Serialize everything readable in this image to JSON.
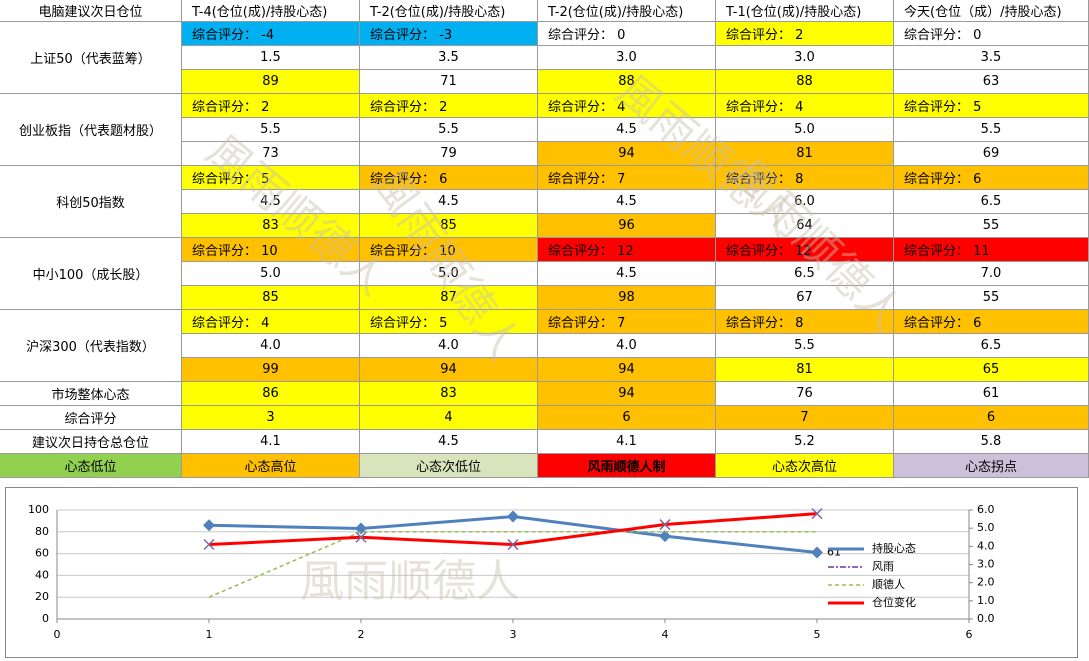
{
  "table": {
    "header": [
      "电脑建议次日仓位",
      "T-4(仓位(成)/持股心态)",
      "T-2(仓位(成)/持股心态)",
      "T-2(仓位(成)/持股心态)",
      "T-1(仓位(成)/持股心态)",
      "今天(仓位（成）/持股心态)"
    ],
    "groups": [
      {
        "label": "上证50（代表蓝筹）",
        "rows": [
          [
            {
              "text": "综合评分： -4",
              "fill": "#00b0f0"
            },
            {
              "text": "综合评分： -3",
              "fill": "#00b0f0"
            },
            {
              "text": "综合评分： 0",
              "fill": "#ffffff"
            },
            {
              "text": "综合评分： 2",
              "fill": "#ffff00"
            },
            {
              "text": "综合评分： 0",
              "fill": "#ffffff"
            }
          ],
          [
            {
              "text": "1.5",
              "fill": "#ffffff"
            },
            {
              "text": "3.5",
              "fill": "#ffffff"
            },
            {
              "text": "3.0",
              "fill": "#ffffff"
            },
            {
              "text": "3.0",
              "fill": "#ffffff"
            },
            {
              "text": "3.5",
              "fill": "#ffffff"
            }
          ],
          [
            {
              "text": "89",
              "fill": "#ffff00"
            },
            {
              "text": "71",
              "fill": "#ffffff"
            },
            {
              "text": "88",
              "fill": "#ffff00"
            },
            {
              "text": "88",
              "fill": "#ffff00"
            },
            {
              "text": "63",
              "fill": "#ffffff"
            }
          ]
        ]
      },
      {
        "label": "创业板指（代表题材股）",
        "rows": [
          [
            {
              "text": "综合评分： 2",
              "fill": "#ffff00"
            },
            {
              "text": "综合评分： 2",
              "fill": "#ffff00"
            },
            {
              "text": "综合评分： 4",
              "fill": "#ffff00"
            },
            {
              "text": "综合评分： 4",
              "fill": "#ffff00"
            },
            {
              "text": "综合评分： 5",
              "fill": "#ffff00"
            }
          ],
          [
            {
              "text": "5.5",
              "fill": "#ffffff"
            },
            {
              "text": "5.5",
              "fill": "#ffffff"
            },
            {
              "text": "4.5",
              "fill": "#ffffff"
            },
            {
              "text": "5.0",
              "fill": "#ffffff"
            },
            {
              "text": "5.5",
              "fill": "#ffffff"
            }
          ],
          [
            {
              "text": "73",
              "fill": "#ffffff"
            },
            {
              "text": "79",
              "fill": "#ffffff"
            },
            {
              "text": "94",
              "fill": "#ffc000"
            },
            {
              "text": "81",
              "fill": "#ffc000"
            },
            {
              "text": "69",
              "fill": "#ffffff"
            }
          ]
        ]
      },
      {
        "label": "科创50指数",
        "rows": [
          [
            {
              "text": "综合评分： 5",
              "fill": "#ffff00"
            },
            {
              "text": "综合评分： 6",
              "fill": "#ffc000"
            },
            {
              "text": "综合评分： 7",
              "fill": "#ffc000"
            },
            {
              "text": "综合评分： 8",
              "fill": "#ffc000"
            },
            {
              "text": "综合评分： 6",
              "fill": "#ffc000"
            }
          ],
          [
            {
              "text": "4.5",
              "fill": "#ffffff"
            },
            {
              "text": "4.5",
              "fill": "#ffffff"
            },
            {
              "text": "4.5",
              "fill": "#ffffff"
            },
            {
              "text": "6.0",
              "fill": "#ffffff"
            },
            {
              "text": "6.5",
              "fill": "#ffffff"
            }
          ],
          [
            {
              "text": "83",
              "fill": "#ffff00"
            },
            {
              "text": "85",
              "fill": "#ffff00"
            },
            {
              "text": "96",
              "fill": "#ffc000"
            },
            {
              "text": "64",
              "fill": "#ffffff"
            },
            {
              "text": "55",
              "fill": "#ffffff"
            }
          ]
        ]
      },
      {
        "label": "中小100（成长股）",
        "rows": [
          [
            {
              "text": "综合评分： 10",
              "fill": "#ffc000"
            },
            {
              "text": "综合评分： 10",
              "fill": "#ffc000"
            },
            {
              "text": "综合评分： 12",
              "fill": "#ff0000"
            },
            {
              "text": "综合评分： 12",
              "fill": "#ff0000"
            },
            {
              "text": "综合评分： 11",
              "fill": "#ff0000"
            }
          ],
          [
            {
              "text": "5.0",
              "fill": "#ffffff"
            },
            {
              "text": "5.0",
              "fill": "#ffffff"
            },
            {
              "text": "4.5",
              "fill": "#ffffff"
            },
            {
              "text": "6.5",
              "fill": "#ffffff"
            },
            {
              "text": "7.0",
              "fill": "#ffffff"
            }
          ],
          [
            {
              "text": "85",
              "fill": "#ffff00"
            },
            {
              "text": "87",
              "fill": "#ffff00"
            },
            {
              "text": "98",
              "fill": "#ffc000"
            },
            {
              "text": "67",
              "fill": "#ffffff"
            },
            {
              "text": "55",
              "fill": "#ffffff"
            }
          ]
        ]
      },
      {
        "label": "沪深300（代表指数）",
        "rows": [
          [
            {
              "text": "综合评分： 4",
              "fill": "#ffff00"
            },
            {
              "text": "综合评分： 5",
              "fill": "#ffff00"
            },
            {
              "text": "综合评分： 7",
              "fill": "#ffc000"
            },
            {
              "text": "综合评分： 8",
              "fill": "#ffc000"
            },
            {
              "text": "综合评分： 6",
              "fill": "#ffc000"
            }
          ],
          [
            {
              "text": "4.0",
              "fill": "#ffffff"
            },
            {
              "text": "4.0",
              "fill": "#ffffff"
            },
            {
              "text": "4.0",
              "fill": "#ffffff"
            },
            {
              "text": "5.5",
              "fill": "#ffffff"
            },
            {
              "text": "6.5",
              "fill": "#ffffff"
            }
          ],
          [
            {
              "text": "99",
              "fill": "#ffc000"
            },
            {
              "text": "94",
              "fill": "#ffc000"
            },
            {
              "text": "94",
              "fill": "#ffc000"
            },
            {
              "text": "81",
              "fill": "#ffff00"
            },
            {
              "text": "65",
              "fill": "#ffff00"
            }
          ]
        ]
      }
    ],
    "summary": [
      {
        "label": "市场整体心态",
        "cells": [
          {
            "text": "86",
            "fill": "#ffff00"
          },
          {
            "text": "83",
            "fill": "#ffff00"
          },
          {
            "text": "94",
            "fill": "#ffc000"
          },
          {
            "text": "76",
            "fill": "#ffffff"
          },
          {
            "text": "61",
            "fill": "#ffffff"
          }
        ]
      },
      {
        "label": "综合评分",
        "cells": [
          {
            "text": "3",
            "fill": "#ffff00"
          },
          {
            "text": "4",
            "fill": "#ffff00"
          },
          {
            "text": "6",
            "fill": "#ffc000"
          },
          {
            "text": "7",
            "fill": "#ffc000"
          },
          {
            "text": "6",
            "fill": "#ffc000"
          }
        ]
      },
      {
        "label": "建议次日持仓总仓位",
        "cells": [
          {
            "text": "4.1",
            "fill": "#ffffff"
          },
          {
            "text": "4.5",
            "fill": "#ffffff"
          },
          {
            "text": "4.1",
            "fill": "#ffffff"
          },
          {
            "text": "5.2",
            "fill": "#ffffff"
          },
          {
            "text": "5.8",
            "fill": "#ffffff"
          }
        ]
      }
    ],
    "legend": [
      {
        "text": "心态低位",
        "fill": "#92d050"
      },
      {
        "text": "心态高位",
        "fill": "#ffc000"
      },
      {
        "text": "心态次低位",
        "fill": "#d8e4bc"
      },
      {
        "text": "风雨顺德人制",
        "fill": "#ff0000",
        "bold": true
      },
      {
        "text": "心态次高位",
        "fill": "#ffff00"
      },
      {
        "text": "心态拐点",
        "fill": "#ccc0da"
      }
    ]
  },
  "watermark": "風雨顺德人",
  "chart_data": {
    "type": "line",
    "x": [
      1,
      2,
      3,
      4,
      5
    ],
    "xlim": [
      0,
      6
    ],
    "xticks": [
      0,
      1,
      2,
      3,
      4,
      5,
      6
    ],
    "ylim": [
      0,
      100
    ],
    "yticks": [
      0,
      20,
      40,
      60,
      80,
      100
    ],
    "y2lim": [
      0,
      6
    ],
    "y2ticks": [
      {
        "value": 0,
        "label": "0.0"
      },
      {
        "value": 1,
        "label": "1.0"
      },
      {
        "value": 2,
        "label": "2.0"
      },
      {
        "value": 3,
        "label": "3.0"
      },
      {
        "value": 4,
        "label": "4.0"
      },
      {
        "value": 5,
        "label": "5.0"
      },
      {
        "value": 6,
        "label": "6.0"
      }
    ],
    "grid": true,
    "series": [
      {
        "name": "持股心态",
        "color": "#4f81bd",
        "marker": "diamond",
        "values": [
          86,
          83,
          94,
          76,
          61
        ],
        "label_last": true
      },
      {
        "name": "风雨",
        "color": "#7030a0",
        "dash": "6 2 2 2",
        "values": [
          null,
          null,
          null,
          null,
          null
        ]
      },
      {
        "name": "顺德人",
        "color": "#9bbb59",
        "dash": "4 3",
        "values": [
          20,
          80,
          80,
          80,
          80
        ]
      },
      {
        "name": "仓位变化",
        "color": "#ff0000",
        "marker": "x",
        "axis": "y2",
        "values": [
          4.1,
          4.5,
          4.1,
          5.2,
          5.8
        ]
      }
    ]
  }
}
